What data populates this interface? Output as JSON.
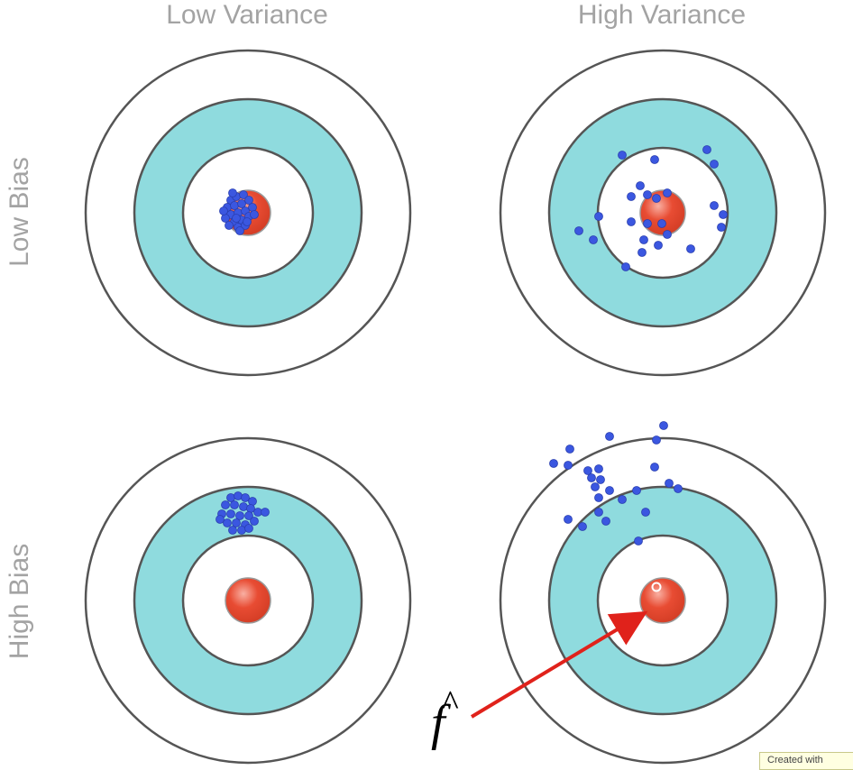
{
  "columns": [
    "Low Variance",
    "High Variance"
  ],
  "rows": [
    "Low Bias",
    "High Bias"
  ],
  "annotation": {
    "symbol": "f",
    "hat": "^"
  },
  "watermark": "Created with",
  "colors": {
    "ring_band": "#8fdbde",
    "bullseye": "#e84c33",
    "points": "#3b57e0",
    "ring_stroke": "#555555",
    "arrow": "#e0221b",
    "label": "#a3a3a3"
  }
}
